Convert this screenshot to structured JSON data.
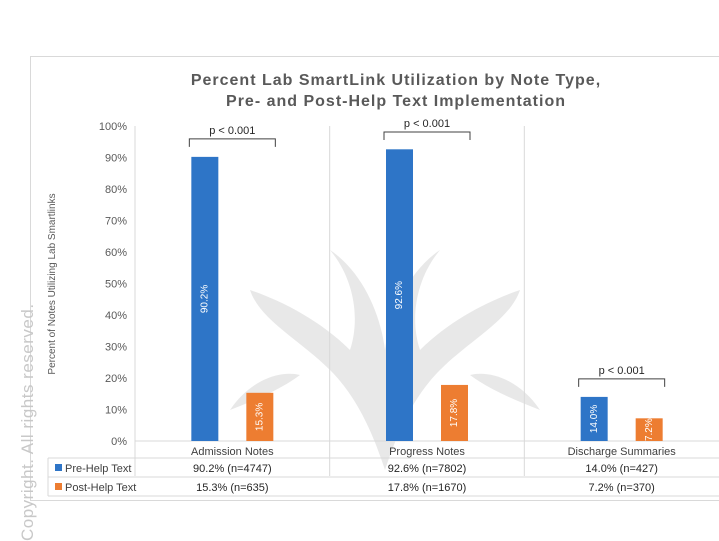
{
  "watermark": "Copyright. All rights reserved.",
  "chart_data": {
    "type": "bar",
    "title_lines": [
      "Percent Lab SmartLink Utilization by Note Type,",
      "Pre- and Post-Help Text Implementation"
    ],
    "ylabel": "Percent of Notes Utilizing Lab Smartlinks",
    "ylim": [
      0,
      100
    ],
    "yticks": [
      "0%",
      "10%",
      "20%",
      "30%",
      "40%",
      "50%",
      "60%",
      "70%",
      "80%",
      "90%",
      "100%"
    ],
    "categories": [
      "Admission Notes",
      "Progress Notes",
      "Discharge Summaries"
    ],
    "series": [
      {
        "name": "Pre-Help Text",
        "color": "#2e75c7",
        "values": [
          90.2,
          92.6,
          14.0
        ],
        "labels": [
          "90.2%",
          "92.6%",
          "14.0%"
        ],
        "table": [
          "90.2% (n=4747)",
          "92.6% (n=7802)",
          "14.0% (n=427)"
        ]
      },
      {
        "name": "Post-Help Text",
        "color": "#ed7d31",
        "values": [
          15.3,
          17.8,
          7.2
        ],
        "labels": [
          "15.3%",
          "17.8%",
          "7.2%"
        ],
        "table": [
          "15.3% (n=635)",
          "17.8% (n=1670)",
          "7.2% (n=370)"
        ]
      }
    ],
    "annotations": [
      "p < 0.001",
      "p < 0.001",
      "p < 0.001"
    ],
    "grid": false,
    "legend": "data-table"
  }
}
